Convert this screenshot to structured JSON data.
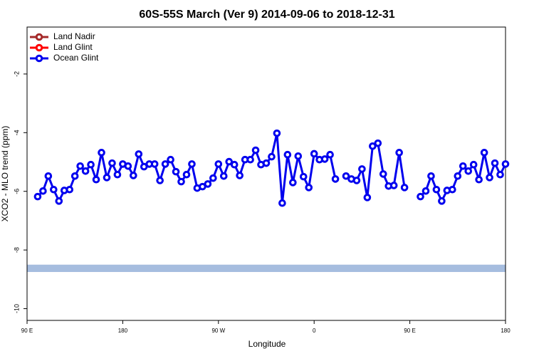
{
  "chart_data": {
    "type": "line",
    "title": "60S-55S March (Ver 9)   2014-09-06 to 2018-12-31",
    "xlabel": "Longitude",
    "ylabel": "XCO2 - MLO trend (ppm)",
    "xlim": [
      90,
      540
    ],
    "ylim": [
      -10.4,
      -0.4
    ],
    "xticks": [
      {
        "value": 90,
        "label": "90 E"
      },
      180,
      {
        "value": 270,
        "label": "90 W"
      },
      {
        "value": 360,
        "label": "0"
      },
      {
        "value": 450,
        "label": "90 E"
      },
      {
        "value": 540,
        "label": "180"
      }
    ],
    "yticks": [
      -10,
      -8,
      -6,
      -4,
      -2
    ],
    "grid": false,
    "legend": "upper left",
    "band": {
      "range": [
        -8.75,
        -8.5
      ],
      "color": "#a6bddf"
    },
    "x": [
      100,
      105,
      110,
      115,
      120,
      125,
      130,
      135,
      140,
      145,
      150,
      155,
      160,
      165,
      170,
      175,
      180,
      185,
      190,
      195,
      200,
      205,
      210,
      215,
      220,
      225,
      230,
      235,
      240,
      245,
      250,
      255,
      260,
      265,
      270,
      275,
      280,
      285,
      290,
      295,
      300,
      305,
      310,
      315,
      320,
      325,
      330,
      335,
      340,
      345,
      350,
      355,
      360,
      365,
      370,
      375,
      380,
      385,
      390,
      395,
      400,
      405,
      410,
      415,
      420,
      425,
      430,
      435,
      440,
      445,
      450,
      455,
      460,
      465,
      470,
      475,
      480,
      485,
      490,
      495,
      500,
      505,
      510,
      515,
      520,
      525,
      530,
      535,
      540
    ],
    "series": [
      {
        "name": "Land Nadir",
        "color": "#a52a2a",
        "values": [
          null,
          null,
          null,
          null,
          null,
          null,
          null,
          null,
          null,
          null,
          null,
          null,
          null,
          null,
          null,
          null,
          null,
          null,
          null,
          null,
          null,
          null,
          null,
          null,
          null,
          null,
          null,
          null,
          null,
          null,
          null,
          null,
          null,
          null,
          null,
          null,
          null,
          null,
          null,
          null,
          null,
          null,
          null,
          null,
          null,
          null,
          null,
          null,
          null,
          null,
          null,
          null,
          null,
          null,
          null,
          null,
          null,
          null,
          null,
          null,
          null,
          null,
          null,
          null,
          null,
          null,
          null,
          null,
          null,
          null,
          null,
          null,
          null,
          null,
          null,
          null,
          null,
          null,
          null,
          null,
          null,
          null,
          null,
          null,
          null,
          null,
          null,
          null,
          null
        ]
      },
      {
        "name": "Land Glint",
        "color": "#ff0000",
        "values": [
          null,
          null,
          null,
          null,
          null,
          null,
          null,
          null,
          null,
          null,
          null,
          null,
          null,
          null,
          null,
          null,
          null,
          null,
          null,
          null,
          null,
          null,
          null,
          null,
          null,
          null,
          null,
          null,
          null,
          null,
          null,
          null,
          null,
          null,
          null,
          null,
          null,
          null,
          null,
          null,
          null,
          null,
          null,
          null,
          null,
          null,
          null,
          null,
          null,
          null,
          null,
          null,
          null,
          null,
          null,
          null,
          null,
          null,
          null,
          null,
          null,
          null,
          null,
          null,
          null,
          null,
          null,
          null,
          null,
          null,
          null,
          null,
          null,
          null,
          null,
          null,
          null,
          null,
          null,
          null,
          null,
          null,
          null,
          null,
          null,
          null,
          null,
          null,
          null
        ]
      },
      {
        "name": "Ocean Glint",
        "color": "#0000ee",
        "values": [
          -6.18,
          -5.99,
          -5.48,
          -5.94,
          -6.33,
          -5.97,
          -5.94,
          -5.48,
          -5.14,
          -5.31,
          -5.09,
          -5.6,
          -4.68,
          -5.53,
          -5.04,
          -5.43,
          -5.07,
          -5.14,
          -5.46,
          -4.73,
          -5.16,
          -5.07,
          -5.07,
          -5.63,
          -5.07,
          -4.92,
          -5.33,
          -5.67,
          -5.43,
          -5.07,
          -5.89,
          -5.84,
          -5.75,
          -5.55,
          -5.07,
          -5.48,
          -4.99,
          -5.09,
          -5.46,
          -4.92,
          -4.92,
          -4.6,
          -5.09,
          -5.04,
          -4.82,
          -4.02,
          -6.4,
          -4.75,
          -5.7,
          -4.8,
          -5.5,
          -5.87,
          -4.72,
          -4.92,
          -4.9,
          -4.75,
          -5.58,
          null,
          -5.48,
          -5.58,
          -5.63,
          -5.24,
          -6.21,
          -4.46,
          -4.36,
          -5.41,
          -5.82,
          -5.8,
          -4.68,
          -5.87,
          null,
          null,
          -6.18,
          -5.99,
          -5.48,
          -5.94,
          -6.33,
          -5.97,
          -5.94,
          -5.48,
          -5.14,
          -5.31,
          -5.09,
          -5.6,
          -4.68,
          -5.53,
          -5.04,
          -5.43,
          -5.07
        ]
      }
    ]
  }
}
